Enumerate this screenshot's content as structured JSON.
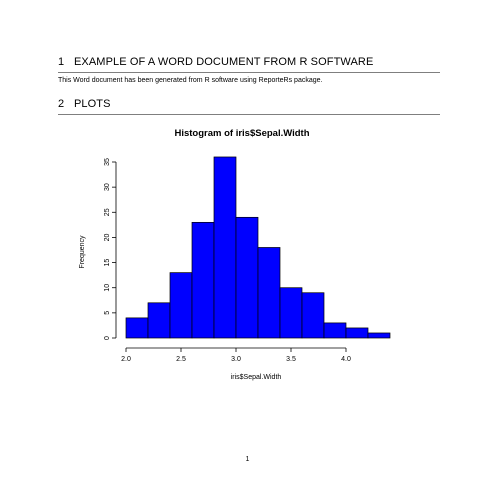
{
  "document": {
    "section1": {
      "number": "1",
      "title": "EXAMPLE OF A WORD DOCUMENT FROM R SOFTWARE"
    },
    "paragraph": "This Word document has been generated from R software using ReporteRs package.",
    "section2": {
      "number": "2",
      "title": "PLOTS"
    },
    "page_number": "1"
  },
  "chart_data": {
    "type": "bar",
    "title": "Histogram of iris$Sepal.Width",
    "xlabel": "iris$Sepal.Width",
    "ylabel": "Frequency",
    "bin_edges": [
      2.0,
      2.2,
      2.4,
      2.6,
      2.8,
      3.0,
      3.2,
      3.4,
      3.6,
      3.8,
      4.0,
      4.2,
      4.4
    ],
    "values": [
      4,
      7,
      13,
      23,
      36,
      24,
      18,
      10,
      9,
      3,
      2,
      1
    ],
    "xticks": [
      "2.0",
      "2.5",
      "3.0",
      "3.5",
      "4.0"
    ],
    "yticks": [
      "0",
      "5",
      "10",
      "15",
      "20",
      "25",
      "30",
      "35"
    ],
    "xlim": [
      2.0,
      4.4
    ],
    "ylim": [
      0,
      35
    ],
    "bar_color": "#0000ff",
    "grid": false
  }
}
